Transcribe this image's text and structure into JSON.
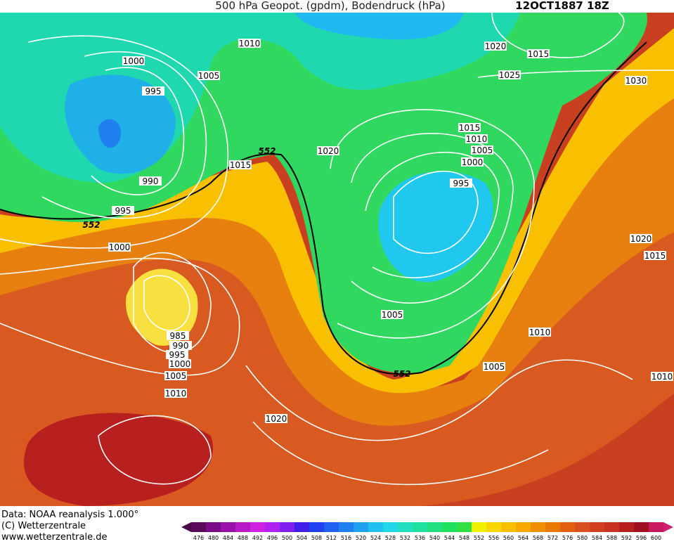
{
  "header": {
    "title": "500 hPa Geopot. (gpdm), Bodendruck (hPa)",
    "date": "12OCT1887 18Z"
  },
  "footer": [
    "Data: NOAA reanalysis 1.000°",
    "(C) Wetterzentrale",
    "www.wetterzentrale.de"
  ],
  "isobar_labels": [
    "1000",
    "995",
    "990",
    "995",
    "1000",
    "1005",
    "1010",
    "1015",
    "1020",
    "1020",
    "1015",
    "1025",
    "1030",
    "1015",
    "1010",
    "1005",
    "1000",
    "995",
    "1005",
    "985",
    "990",
    "995",
    "1000",
    "1005",
    "1010",
    "1020",
    "1010",
    "1005",
    "1020",
    "1015",
    "1010"
  ],
  "contour_labels": [
    "552",
    "552",
    "552"
  ],
  "colorbar": {
    "values": [
      476,
      480,
      484,
      488,
      492,
      496,
      500,
      504,
      508,
      512,
      516,
      520,
      524,
      528,
      532,
      536,
      540,
      544,
      548,
      552,
      556,
      560,
      564,
      568,
      572,
      576,
      580,
      584,
      588,
      592,
      596,
      600
    ],
    "colors": [
      "#5a0a5a",
      "#7a0a86",
      "#9a10a8",
      "#b818c8",
      "#d020e0",
      "#b020f0",
      "#8020f0",
      "#4020e8",
      "#2040f0",
      "#2060f0",
      "#2080f0",
      "#20a0f0",
      "#20c0f0",
      "#20d8e8",
      "#20e0c0",
      "#20e0a0",
      "#20e080",
      "#20e060",
      "#30e040",
      "#f0f000",
      "#f8d800",
      "#f8c000",
      "#f8a800",
      "#f09000",
      "#e87800",
      "#e06010",
      "#d85020",
      "#d04020",
      "#c83020",
      "#b82020",
      "#a01020",
      "#c81860"
    ]
  }
}
